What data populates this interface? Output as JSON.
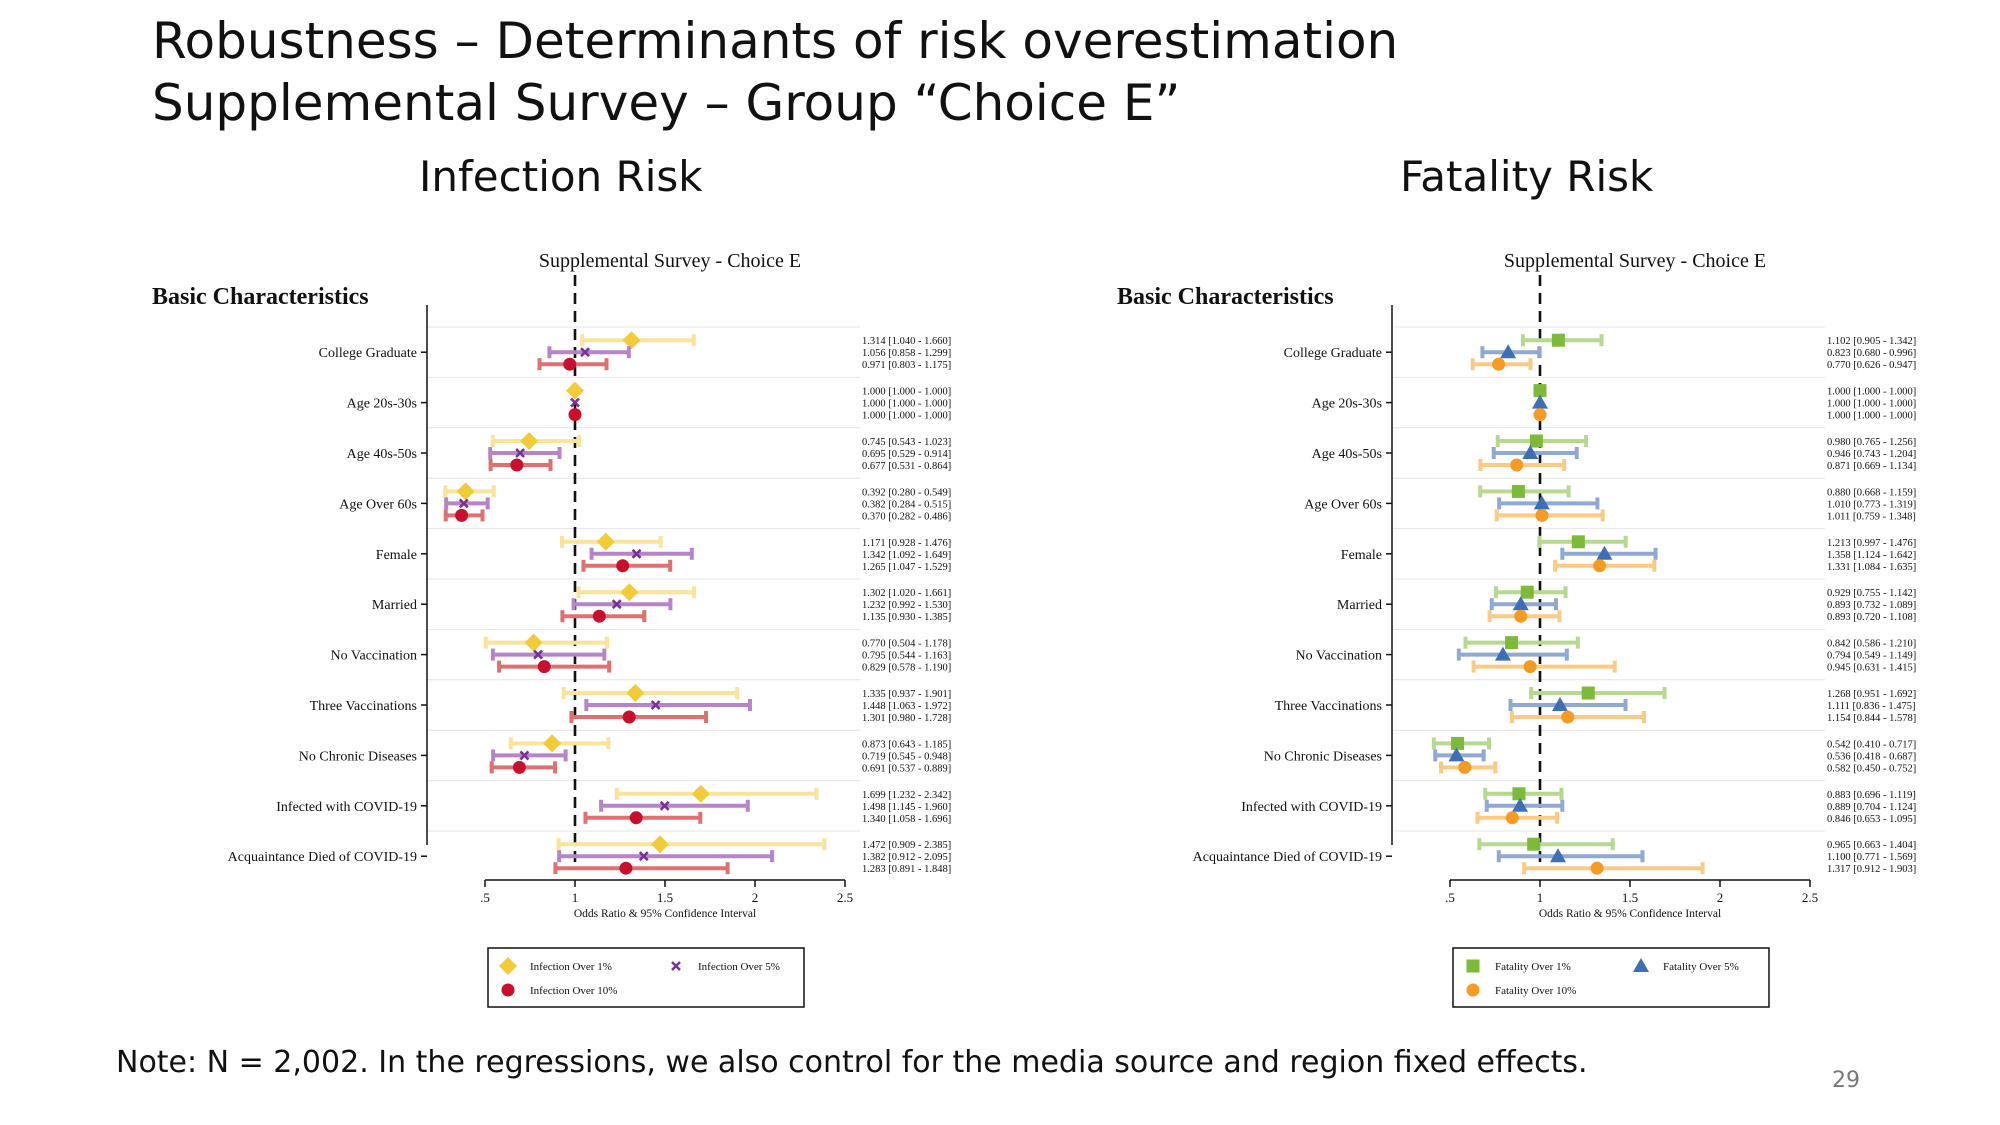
{
  "slide": {
    "title_line1": "Robustness – Determinants of risk overestimation",
    "title_line2": "Supplemental Survey – Group “Choice E”",
    "note": "Note: N = 2,002. In the regressions, we also control for the media source and region fixed effects.",
    "page_number": "29"
  },
  "chart_data": [
    {
      "type": "forest",
      "section_title": "Infection Risk",
      "title": "Supplemental Survey - Choice E",
      "group_header": "Basic Characteristics",
      "xlabel": "Odds Ratio & 95% Confidence Interval",
      "xlim": [
        0.5,
        2.5
      ],
      "xticks": [
        0.5,
        1,
        1.5,
        2,
        2.5
      ],
      "xtick_labels": [
        ".5",
        "1",
        "1.5",
        "2",
        "2.5"
      ],
      "reference_line": 1,
      "legend_position": "bottom-center",
      "categories": [
        "College Graduate",
        "Age 20s-30s",
        "Age 40s-50s",
        "Age Over 60s",
        "Female",
        "Married",
        "No Vaccination",
        "Three Vaccinations",
        "No Chronic Diseases",
        "Infected with COVID-19",
        "Acquaintance Died of COVID-19"
      ],
      "series": [
        {
          "name": "Infection Over 1%",
          "marker": "diamond",
          "color": "#F2CC38",
          "bar_color": "#FAE39A",
          "values": [
            1.314,
            1.0,
            0.745,
            0.392,
            1.171,
            1.302,
            0.77,
            1.335,
            0.873,
            1.699,
            1.472
          ],
          "ci_low": [
            1.04,
            1.0,
            0.543,
            0.28,
            0.928,
            1.02,
            0.504,
            0.937,
            0.643,
            1.232,
            0.909
          ],
          "ci_high": [
            1.66,
            1.0,
            1.023,
            0.549,
            1.476,
            1.661,
            1.178,
            1.901,
            1.185,
            2.342,
            2.385
          ],
          "labels": [
            "1.314 [1.040 - 1.660]",
            "1.000 [1.000 - 1.000]",
            "0.745 [0.543 - 1.023]",
            "0.392 [0.280 - 0.549]",
            "1.171 [0.928 - 1.476]",
            "1.302 [1.020 - 1.661]",
            "0.770 [0.504 - 1.178]",
            "1.335 [0.937 - 1.901]",
            "0.873 [0.643 - 1.185]",
            "1.699 [1.232 - 2.342]",
            "1.472 [0.909 - 2.385]"
          ]
        },
        {
          "name": "Infection Over 5%",
          "marker": "x",
          "color": "#7B2F98",
          "bar_color": "#B585C8",
          "values": [
            1.056,
            1.0,
            0.695,
            0.382,
            1.342,
            1.232,
            0.795,
            1.448,
            0.719,
            1.498,
            1.382
          ],
          "ci_low": [
            0.858,
            1.0,
            0.529,
            0.284,
            1.092,
            0.992,
            0.544,
            1.063,
            0.545,
            1.145,
            0.912
          ],
          "ci_high": [
            1.299,
            1.0,
            0.914,
            0.515,
            1.649,
            1.53,
            1.163,
            1.972,
            0.948,
            1.96,
            2.095
          ],
          "labels": [
            "1.056 [0.858 - 1.299]",
            "1.000 [1.000 - 1.000]",
            "0.695 [0.529 - 0.914]",
            "0.382 [0.284 - 0.515]",
            "1.342 [1.092 - 1.649]",
            "1.232 [0.992 - 1.530]",
            "0.795 [0.544 - 1.163]",
            "1.448 [1.063 - 1.972]",
            "0.719 [0.545 - 0.948]",
            "1.498 [1.145 - 1.960]",
            "1.382 [0.912 - 2.095]"
          ]
        },
        {
          "name": "Infection Over 10%",
          "marker": "circle",
          "color": "#C8102E",
          "bar_color": "#E07070",
          "values": [
            0.971,
            1.0,
            0.677,
            0.37,
            1.265,
            1.135,
            0.829,
            1.301,
            0.691,
            1.34,
            1.283
          ],
          "ci_low": [
            0.803,
            1.0,
            0.531,
            0.282,
            1.047,
            0.93,
            0.578,
            0.98,
            0.537,
            1.058,
            0.891
          ],
          "ci_high": [
            1.175,
            1.0,
            0.864,
            0.486,
            1.529,
            1.385,
            1.19,
            1.728,
            0.889,
            1.696,
            1.848
          ],
          "labels": [
            "0.971 [0.803 - 1.175]",
            "1.000 [1.000 - 1.000]",
            "0.677 [0.531 - 0.864]",
            "0.370 [0.282 - 0.486]",
            "1.265 [1.047 - 1.529]",
            "1.135 [0.930 - 1.385]",
            "0.829 [0.578 - 1.190]",
            "1.301 [0.980 - 1.728]",
            "0.691 [0.537 - 0.889]",
            "1.340 [1.058 - 1.696]",
            "1.283 [0.891 - 1.848]"
          ]
        }
      ]
    },
    {
      "type": "forest",
      "section_title": "Fatality Risk",
      "title": "Supplemental Survey - Choice E",
      "group_header": "Basic Characteristics",
      "xlabel": "Odds Ratio & 95% Confidence Interval",
      "xlim": [
        0.5,
        2.5
      ],
      "xticks": [
        0.5,
        1,
        1.5,
        2,
        2.5
      ],
      "xtick_labels": [
        ".5",
        "1",
        "1.5",
        "2",
        "2.5"
      ],
      "reference_line": 1,
      "legend_position": "bottom-center",
      "categories": [
        "College Graduate",
        "Age 20s-30s",
        "Age 40s-50s",
        "Age Over 60s",
        "Female",
        "Married",
        "No Vaccination",
        "Three Vaccinations",
        "No Chronic Diseases",
        "Infected with COVID-19",
        "Acquaintance Died of COVID-19"
      ],
      "series": [
        {
          "name": "Fatality Over 1%",
          "marker": "square",
          "color": "#7DBA3A",
          "bar_color": "#B6D98F",
          "values": [
            1.102,
            1.0,
            0.98,
            0.88,
            1.213,
            0.929,
            0.842,
            1.268,
            0.542,
            0.883,
            0.965
          ],
          "ci_low": [
            0.905,
            1.0,
            0.765,
            0.668,
            0.997,
            0.755,
            0.586,
            0.951,
            0.41,
            0.696,
            0.663
          ],
          "ci_high": [
            1.342,
            1.0,
            1.256,
            1.159,
            1.476,
            1.142,
            1.21,
            1.692,
            0.717,
            1.119,
            1.404
          ],
          "labels": [
            "1.102 [0.905 - 1.342]",
            "1.000 [1.000 - 1.000]",
            "0.980 [0.765 - 1.256]",
            "0.880 [0.668 - 1.159]",
            "1.213 [0.997 - 1.476]",
            "0.929 [0.755 - 1.142]",
            "0.842 [0.586 - 1.210]",
            "1.268 [0.951 - 1.692]",
            "0.542 [0.410 - 0.717]",
            "0.883 [0.696 - 1.119]",
            "0.965 [0.663 - 1.404]"
          ]
        },
        {
          "name": "Fatality Over 5%",
          "marker": "triangle",
          "color": "#3E6EB4",
          "bar_color": "#8FA9D3",
          "values": [
            0.823,
            1.0,
            0.946,
            1.01,
            1.358,
            0.893,
            0.794,
            1.111,
            0.536,
            0.889,
            1.1
          ],
          "ci_low": [
            0.68,
            1.0,
            0.743,
            0.773,
            1.124,
            0.732,
            0.549,
            0.836,
            0.418,
            0.704,
            0.771
          ],
          "ci_high": [
            0.996,
            1.0,
            1.204,
            1.319,
            1.642,
            1.089,
            1.149,
            1.475,
            0.687,
            1.124,
            1.569
          ],
          "labels": [
            "0.823 [0.680 - 0.996]",
            "1.000 [1.000 - 1.000]",
            "0.946 [0.743 - 1.204]",
            "1.010 [0.773 - 1.319]",
            "1.358 [1.124 - 1.642]",
            "0.893 [0.732 - 1.089]",
            "0.794 [0.549 - 1.149]",
            "1.111 [0.836 - 1.475]",
            "0.536 [0.418 - 0.687]",
            "0.889 [0.704 - 1.124]",
            "1.100 [0.771 - 1.569]"
          ]
        },
        {
          "name": "Fatality Over 10%",
          "marker": "circle",
          "color": "#F59A23",
          "bar_color": "#FBCB85",
          "values": [
            0.77,
            1.0,
            0.871,
            1.011,
            1.331,
            0.893,
            0.945,
            1.154,
            0.582,
            0.846,
            1.317
          ],
          "ci_low": [
            0.626,
            1.0,
            0.669,
            0.759,
            1.084,
            0.72,
            0.631,
            0.844,
            0.45,
            0.653,
            0.912
          ],
          "ci_high": [
            0.947,
            1.0,
            1.134,
            1.348,
            1.635,
            1.108,
            1.415,
            1.578,
            0.752,
            1.095,
            1.903
          ],
          "labels": [
            "0.770 [0.626 - 0.947]",
            "1.000 [1.000 - 1.000]",
            "0.871 [0.669 - 1.134]",
            "1.011 [0.759 - 1.348]",
            "1.331 [1.084 - 1.635]",
            "0.893 [0.720 - 1.108]",
            "0.945 [0.631 - 1.415]",
            "1.154 [0.844 - 1.578]",
            "0.582 [0.450 - 0.752]",
            "0.846 [0.653 - 1.095]",
            "1.317 [0.912 - 1.903]"
          ]
        }
      ]
    }
  ]
}
